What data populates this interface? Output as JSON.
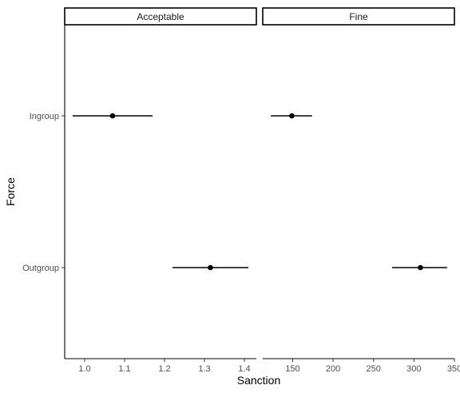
{
  "chart_data": {
    "type": "scatter",
    "xlabel": "Sanction",
    "ylabel": "Force",
    "categories": [
      "Ingroup",
      "Outgroup"
    ],
    "facets": [
      {
        "name": "Acceptable",
        "xlim": [
          0.95,
          1.43
        ],
        "xticks": [
          1.0,
          1.1,
          1.2,
          1.3,
          1.4
        ],
        "xtick_labels": [
          "1.0",
          "1.1",
          "1.2",
          "1.3",
          "1.4"
        ],
        "points": [
          {
            "category": "Ingroup",
            "x": 1.07,
            "low": 0.97,
            "high": 1.17
          },
          {
            "category": "Outgroup",
            "x": 1.315,
            "low": 1.22,
            "high": 1.41
          }
        ]
      },
      {
        "name": "Fine",
        "xlim": [
          113,
          350
        ],
        "xticks": [
          150,
          200,
          250,
          300,
          350
        ],
        "xtick_labels": [
          "150",
          "200",
          "250",
          "300",
          "350"
        ],
        "points": [
          {
            "category": "Ingroup",
            "x": 149,
            "low": 123,
            "high": 174
          },
          {
            "category": "Outgroup",
            "x": 308,
            "low": 273,
            "high": 341
          }
        ]
      }
    ],
    "grid": false,
    "legend": "none"
  }
}
